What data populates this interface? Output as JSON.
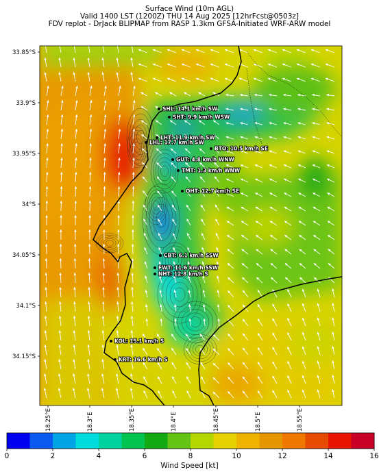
{
  "title": {
    "line1": "Surface Wind (10m AGL)",
    "line2": "Valid 1400 LST (1200Z) THU 14 Aug 2025 [12hrFcst@0503z]",
    "line3": "FDV replot - DrJack BLIPMAP from RASP 1.3km GFSA-Initiated WRF-ARW model"
  },
  "axes": {
    "lat_ticks": [
      "33.85°S",
      "33.9°S",
      "33.95°S",
      "34°S",
      "34.05°S",
      "34.1°S",
      "34.15°S"
    ],
    "lon_ticks": [
      "18.25°E",
      "18.3°E",
      "18.35°E",
      "18.4°E",
      "18.45°E",
      "18.5°E",
      "18.55°E"
    ]
  },
  "stations": [
    {
      "label": "SHL: 14.1 km/h SW"
    },
    {
      "label": "SHT: 9.9 km/h WSW"
    },
    {
      "label": "LHT: 11.9 km/h SW"
    },
    {
      "label": "LHL: 17.7 km/h SW"
    },
    {
      "label": "BTO: 10.5 km/h SE"
    },
    {
      "label": "GUT: 4.8 km/h WNW"
    },
    {
      "label": "TMT: 1.3 km/h WNW"
    },
    {
      "label": "OHT: 12.7 km/h SE"
    },
    {
      "label": "CBT: 6.1 km/h SSW"
    },
    {
      "label": "FWT: 11.6 km/h SSW"
    },
    {
      "label": "NHT: 12.8 km/h S"
    },
    {
      "label": "KOL: 15.1 km/h S"
    },
    {
      "label": "KRT: 16.6 km/h S"
    }
  ],
  "colorbar": {
    "title": "Wind Speed [kt]",
    "tick_labels": [
      "0",
      "2",
      "4",
      "6",
      "8",
      "10",
      "12",
      "14",
      "16"
    ],
    "colors": [
      "#0000f0",
      "#0a5af0",
      "#00a5e6",
      "#00dcdc",
      "#00d2a0",
      "#00c350",
      "#14aa14",
      "#64c314",
      "#b4d700",
      "#e6d200",
      "#f0b400",
      "#e69600",
      "#f07800",
      "#e64b00",
      "#e61400",
      "#c80028"
    ]
  }
}
